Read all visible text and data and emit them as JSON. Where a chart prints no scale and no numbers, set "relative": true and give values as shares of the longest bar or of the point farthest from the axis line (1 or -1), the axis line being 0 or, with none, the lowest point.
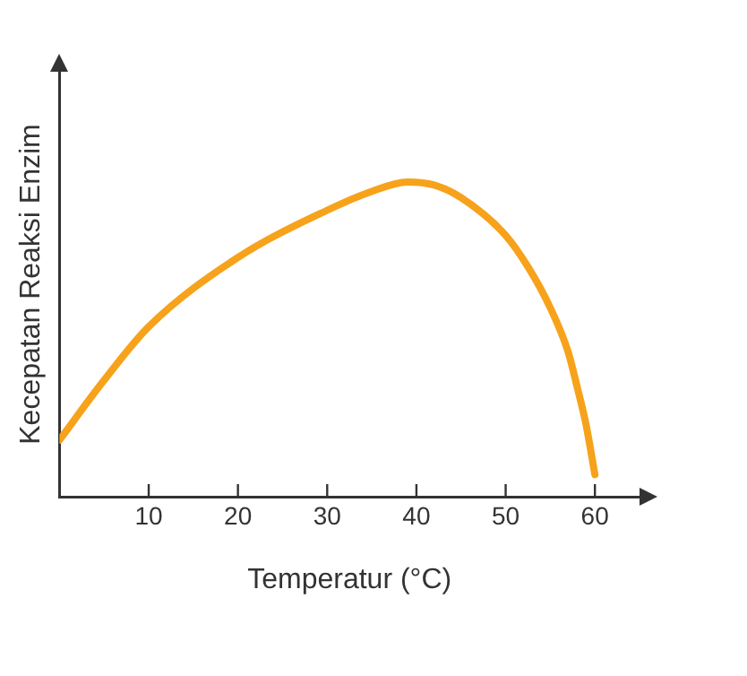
{
  "chart_data": {
    "type": "line",
    "relative": true,
    "xlabel": "Temperatur (°C)",
    "ylabel": "Kecepatan Reaksi Enzim",
    "xlim": [
      0,
      65
    ],
    "xticks": [
      10,
      20,
      30,
      40,
      50,
      60
    ],
    "grid": false,
    "legend": false,
    "marker": "none",
    "line_style": "solid",
    "x": [
      0,
      5,
      10,
      20,
      30,
      35,
      39,
      42,
      45,
      50,
      52.5,
      55,
      57,
      58,
      59,
      60
    ],
    "series": [
      {
        "color": "#f7a21b",
        "values": [
          0.18,
          0.37,
          0.54,
          0.76,
          0.91,
          0.97,
          1,
          0.99,
          0.95,
          0.83,
          0.73,
          0.6,
          0.46,
          0.35,
          0.23,
          0.07
        ]
      }
    ]
  }
}
